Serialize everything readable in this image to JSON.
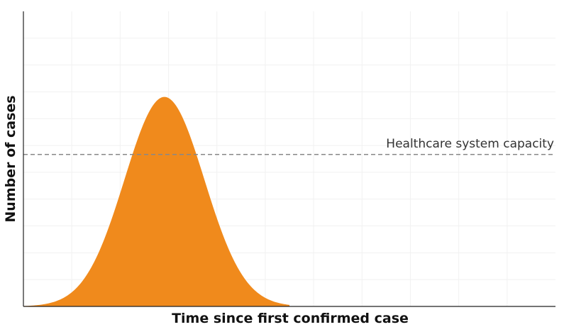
{
  "chart_data": {
    "type": "area",
    "title": "",
    "xlabel": "Time since first confirmed case",
    "ylabel": "Number of cases",
    "xlim": [
      0,
      100
    ],
    "ylim": [
      0,
      100
    ],
    "show_ticks": false,
    "grid": true,
    "series": [
      {
        "color": "#f08a1c",
        "peak_x": 26.5,
        "peak_y": 71,
        "width": 7.5,
        "start_x": 0,
        "end_x": 50
      }
    ],
    "threshold": {
      "label": "Healthcare system capacity",
      "value": 51.5,
      "color": "#888888",
      "style": "dashed"
    }
  }
}
